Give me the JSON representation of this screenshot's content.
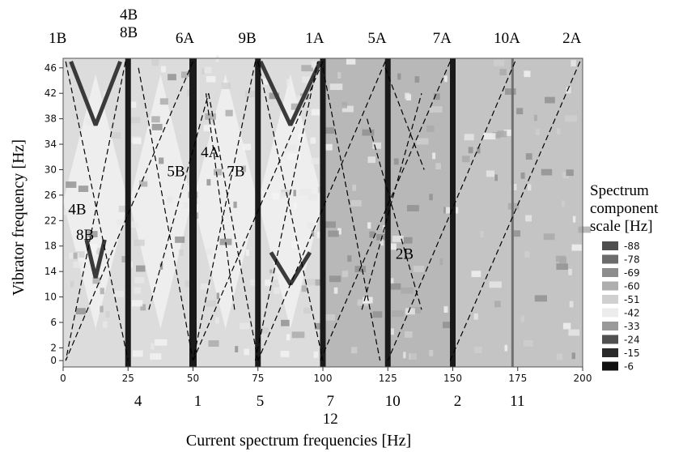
{
  "chart_data": {
    "type": "heatmap",
    "xlabel": "Current spectrum frequencies [Hz]",
    "ylabel": "Vibrator frequency [Hz]",
    "xlim": [
      0,
      200
    ],
    "ylim": [
      -1,
      47.5
    ],
    "x_ticks": [
      0,
      25,
      50,
      75,
      100,
      125,
      150,
      175,
      200
    ],
    "y_ticks": [
      0,
      2,
      6,
      10,
      14,
      18,
      22,
      26,
      30,
      34,
      38,
      42,
      46
    ],
    "legend": {
      "title_lines": [
        "Spectrum",
        "component",
        "scale [Hz]"
      ],
      "entries": [
        {
          "label": "-88",
          "color": "#4f4f4f"
        },
        {
          "label": "-78",
          "color": "#6c6c6c"
        },
        {
          "label": "-69",
          "color": "#8d8d8d"
        },
        {
          "label": "-60",
          "color": "#aeaeae"
        },
        {
          "label": "-51",
          "color": "#d0d0d0"
        },
        {
          "label": "-42",
          "color": "#ececec"
        },
        {
          "label": "-33",
          "color": "#9a9a9a"
        },
        {
          "label": "-24",
          "color": "#505050"
        },
        {
          "label": "-15",
          "color": "#2a2a2a"
        },
        {
          "label": "-6",
          "color": "#101010"
        }
      ]
    },
    "bright_lines_x": [
      25,
      50,
      75,
      100,
      125,
      150,
      173
    ],
    "harmonic_lines": [
      {
        "label": "1B",
        "x0": 1,
        "y0": 47,
        "x1": 25,
        "y1": 0
      },
      {
        "label": "4B\n8B",
        "x0": 24,
        "y0": 47,
        "x1": 1,
        "y1": 0
      },
      {
        "label": "6A",
        "x0": 50,
        "y0": 47,
        "x1": 1,
        "y1": 0
      },
      {
        "label": "9B",
        "x0": 74,
        "y0": 47,
        "x1": 50,
        "y1": 0
      },
      {
        "label": "1A",
        "x0": 100,
        "y0": 47,
        "x1": 50,
        "y1": 0
      },
      {
        "label": "5A",
        "x0": 124,
        "y0": 47,
        "x1": 75,
        "y1": 0
      },
      {
        "label": "7A",
        "x0": 149,
        "y0": 47,
        "x1": 99,
        "y1": 0
      },
      {
        "label": "10A",
        "x0": 174,
        "y0": 47,
        "x1": 125,
        "y1": 0
      },
      {
        "label": "2A",
        "x0": 199,
        "y0": 47,
        "x1": 149,
        "y1": 0
      },
      {
        "label": "5B",
        "x0": 29,
        "y0": 46,
        "x1": 50,
        "y1": 0
      },
      {
        "label": "4A",
        "x0": 33,
        "y0": 8,
        "x1": 56,
        "y1": 42
      },
      {
        "label": "7B",
        "x0": 56,
        "y0": 42,
        "x1": 75,
        "y1": 0
      },
      {
        "label": "",
        "x0": 74,
        "y0": 0,
        "x1": 98,
        "y1": 47
      },
      {
        "label": "",
        "x0": 75,
        "y0": 47,
        "x1": 100,
        "y1": 0
      },
      {
        "label": "2B",
        "x0": 100,
        "y0": 46,
        "x1": 122,
        "y1": 0
      },
      {
        "label": "",
        "x0": 115,
        "y0": 8,
        "x1": 138,
        "y1": 42
      },
      {
        "label": "",
        "x0": 124,
        "y0": 46,
        "x1": 139,
        "y1": 30
      },
      {
        "label": "",
        "x0": 117,
        "y0": 38,
        "x1": 138,
        "y1": 8
      },
      {
        "label": "",
        "x0": 66,
        "y0": 8,
        "x1": 55,
        "y1": 42
      }
    ],
    "annotations": [
      {
        "text": "4B",
        "x": 2,
        "y": 23
      },
      {
        "text": "8B",
        "x": 5,
        "y": 19
      },
      {
        "text": "5B",
        "x": 40,
        "y": 29
      },
      {
        "text": "4A",
        "x": 53,
        "y": 32
      },
      {
        "text": "7B",
        "x": 63,
        "y": 29
      },
      {
        "text": "2B",
        "x": 128,
        "y": 16
      }
    ],
    "ground_truth_x": [
      {
        "text": "4",
        "x": 27
      },
      {
        "text": "1",
        "x": 50
      },
      {
        "text": "5",
        "x": 74
      },
      {
        "text": "7",
        "x": 101
      },
      {
        "text": "12",
        "x": 101
      },
      {
        "text": "10",
        "x": 125
      },
      {
        "text": "2",
        "x": 150
      },
      {
        "text": "11",
        "x": 173
      }
    ]
  }
}
